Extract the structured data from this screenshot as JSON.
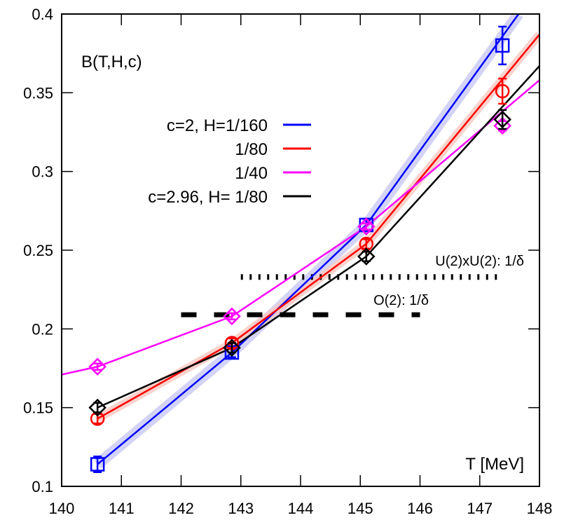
{
  "chart_data": {
    "type": "line",
    "ylabel": "B(T,H,c)",
    "xlabel": "T [MeV]",
    "xlim": [
      140,
      148
    ],
    "ylim": [
      0.1,
      0.4
    ],
    "xticks": [
      "140",
      "141",
      "142",
      "143",
      "144",
      "145",
      "146",
      "147",
      "148"
    ],
    "yticks": [
      "0.1",
      "0.15",
      "0.2",
      "0.25",
      "0.3",
      "0.35",
      "0.4"
    ],
    "grid": false,
    "legend_position": "top-left",
    "series": [
      {
        "name": "c=2, H=1/160",
        "color": "#0000ff",
        "marker": "square",
        "band": "#c8c8f5",
        "x": [
          140.6,
          142.85,
          145.1,
          147.38
        ],
        "y": [
          0.114,
          0.185,
          0.266,
          0.38
        ],
        "err": [
          0.005,
          0.003,
          0.004,
          0.012
        ],
        "fit": [
          [
            140.6,
            0.114
          ],
          [
            142.85,
            0.185
          ],
          [
            145.1,
            0.266
          ],
          [
            147.65,
            0.4
          ]
        ]
      },
      {
        "name": "1/80",
        "color": "#ff0000",
        "marker": "circle",
        "band": "#f8c8c0",
        "x": [
          140.6,
          142.85,
          145.1,
          147.38
        ],
        "y": [
          0.143,
          0.191,
          0.254,
          0.351
        ],
        "err": [
          0.003,
          0.003,
          0.003,
          0.008
        ],
        "fit": [
          [
            140.6,
            0.143
          ],
          [
            142.85,
            0.191
          ],
          [
            145.1,
            0.254
          ],
          [
            148,
            0.387
          ]
        ]
      },
      {
        "name": "1/40",
        "color": "#ff00ff",
        "marker": "diamond",
        "x": [
          140.6,
          142.85,
          145.1,
          147.38
        ],
        "y": [
          0.176,
          0.208,
          0.265,
          0.329
        ],
        "err": [
          0.002,
          0.002,
          0.002,
          0.003
        ],
        "fit": [
          [
            140,
            0.171
          ],
          [
            140.6,
            0.176
          ],
          [
            142.85,
            0.208
          ],
          [
            145.1,
            0.265
          ],
          [
            148,
            0.358
          ]
        ]
      },
      {
        "name": "c=2.96, H= 1/80",
        "color": "#000000",
        "marker": "diamond",
        "x": [
          140.6,
          142.85,
          145.1,
          147.38
        ],
        "y": [
          0.15,
          0.188,
          0.246,
          0.333
        ],
        "err": [
          0.003,
          0.003,
          0.003,
          0.006
        ],
        "fit": [
          [
            140.6,
            0.15
          ],
          [
            142.85,
            0.188
          ],
          [
            145.1,
            0.246
          ],
          [
            148,
            0.367
          ]
        ]
      }
    ],
    "reference_lines": [
      {
        "label": "U(2)xU(2): 1/δ",
        "y": 0.233,
        "x": [
          143,
          147.3
        ],
        "style": "dotted"
      },
      {
        "label": "O(2): 1/δ",
        "y": 0.209,
        "x": [
          142,
          146
        ],
        "style": "dashed"
      }
    ]
  }
}
